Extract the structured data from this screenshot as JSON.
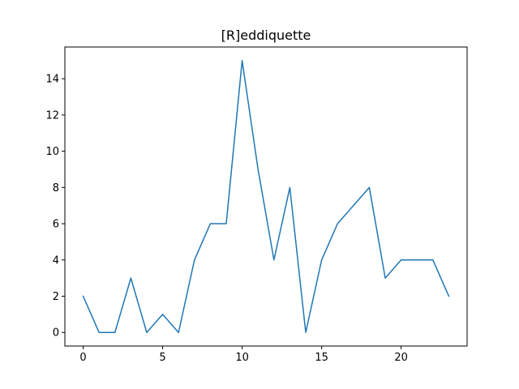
{
  "chart_data": {
    "type": "line",
    "title": "[R]eddiquette",
    "xlabel": "",
    "ylabel": "",
    "xlim": [
      -1.15,
      24.15
    ],
    "ylim": [
      -0.75,
      15.75
    ],
    "x_ticks": [
      0,
      5,
      10,
      15,
      20
    ],
    "y_ticks": [
      0,
      2,
      4,
      6,
      8,
      10,
      12,
      14
    ],
    "grid": false,
    "legend": "none",
    "series": [
      {
        "color": "#1f77b4",
        "x": [
          0,
          1,
          2,
          3,
          4,
          5,
          6,
          7,
          8,
          9,
          10,
          11,
          12,
          13,
          14,
          15,
          16,
          17,
          18,
          19,
          20,
          21,
          22,
          23
        ],
        "values": [
          2,
          0,
          0,
          3,
          0,
          1,
          0,
          4,
          6,
          6,
          15,
          9,
          4,
          8,
          0,
          4,
          6,
          7,
          8,
          3,
          4,
          4,
          4,
          2
        ]
      }
    ]
  }
}
